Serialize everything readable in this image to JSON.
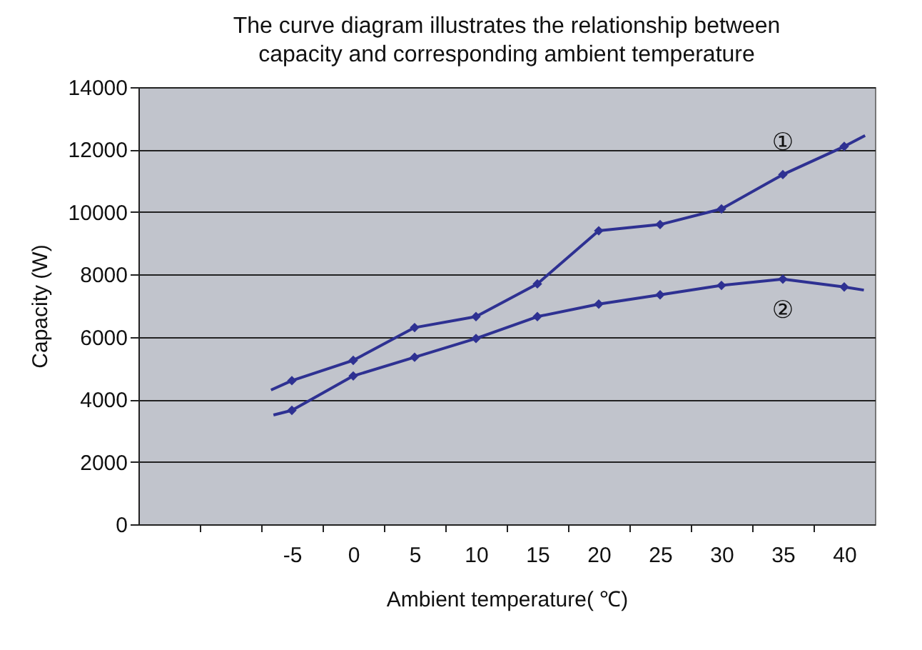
{
  "chart_data": {
    "type": "line",
    "title": "The curve diagram illustrates the relationship between\ncapacity and corresponding ambient temperature",
    "xlabel": "Ambient temperature( ℃)",
    "ylabel": "Capacity (W)",
    "xlim": [
      -17.5,
      42.5
    ],
    "xticks": [
      {
        "value": -12.5,
        "label": null
      },
      {
        "value": -7.5,
        "label": null
      },
      -5,
      {
        "value": -2.5,
        "label": null
      },
      0,
      {
        "value": 2.5,
        "label": null
      },
      5,
      {
        "value": 7.5,
        "label": null
      },
      10,
      {
        "value": 12.5,
        "label": null
      },
      15,
      {
        "value": 17.5,
        "label": null
      },
      20,
      {
        "value": 22.5,
        "label": null
      },
      25,
      {
        "value": 27.5,
        "label": null
      },
      30,
      {
        "value": 32.5,
        "label": null
      },
      35,
      {
        "value": 37.5,
        "label": null
      },
      40
    ],
    "ylim": [
      0,
      14000
    ],
    "yticks": [
      0,
      2000,
      4000,
      6000,
      8000,
      10000,
      12000,
      14000
    ],
    "grid": "y",
    "legend": false,
    "marker": "diamond",
    "line_style": "solid",
    "series": [
      {
        "name": "①",
        "color": "#2e3192",
        "x": [
          -6.7,
          -5,
          0,
          5,
          10,
          15,
          20,
          25,
          30,
          35,
          40,
          41.7
        ],
        "values": [
          4300,
          4600,
          5250,
          6300,
          6650,
          7700,
          9400,
          9600,
          10100,
          11200,
          12100,
          12450
        ]
      },
      {
        "name": "②",
        "color": "#2e3192",
        "x": [
          -6.5,
          -5,
          0,
          5,
          10,
          15,
          20,
          25,
          30,
          35,
          40,
          41.6
        ],
        "values": [
          3500,
          3650,
          4750,
          5350,
          5950,
          6650,
          7050,
          7350,
          7650,
          7850,
          7600,
          7500
        ]
      }
    ]
  }
}
